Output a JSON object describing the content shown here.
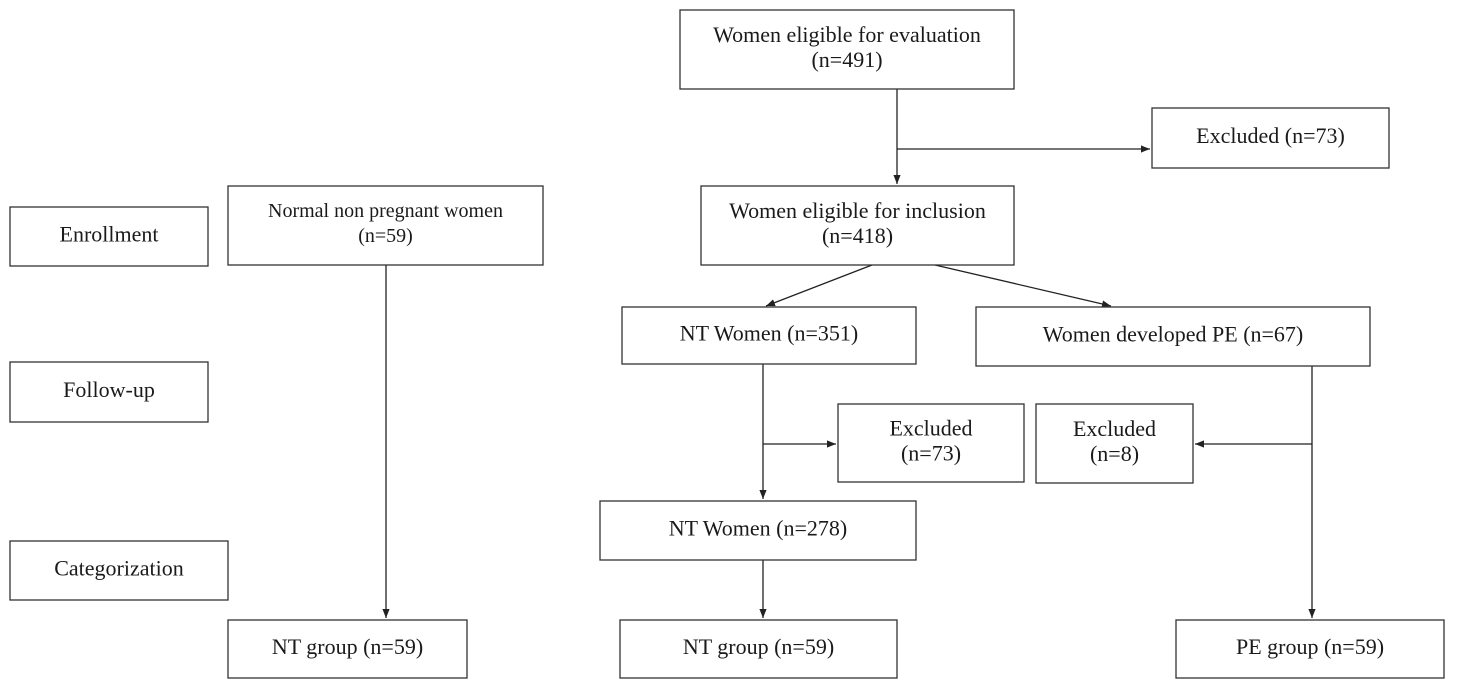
{
  "nodes": [
    {
      "lines": [
        "Enrollment"
      ]
    },
    {
      "lines": [
        "Follow-up"
      ]
    },
    {
      "lines": [
        "Categorization"
      ]
    },
    {
      "lines": [
        "Normal non pregnant women",
        "(n=59)"
      ]
    },
    {
      "lines": [
        "Women eligible for evaluation",
        "(n=491)"
      ]
    },
    {
      "lines": [
        "Excluded (n=73)"
      ]
    },
    {
      "lines": [
        "Women eligible for inclusion",
        "(n=418)"
      ]
    },
    {
      "lines": [
        "NT Women (n=351)"
      ]
    },
    {
      "lines": [
        "Women developed PE (n=67)"
      ]
    },
    {
      "lines": [
        "Excluded",
        "(n=73)"
      ]
    },
    {
      "lines": [
        "Excluded",
        "(n=8)"
      ]
    },
    {
      "lines": [
        "NT Women (n=278)"
      ]
    },
    {
      "lines": [
        "NT group (n=59)"
      ]
    },
    {
      "lines": [
        "NT group (n=59)"
      ]
    },
    {
      "lines": [
        "PE group (n=59)"
      ]
    }
  ]
}
